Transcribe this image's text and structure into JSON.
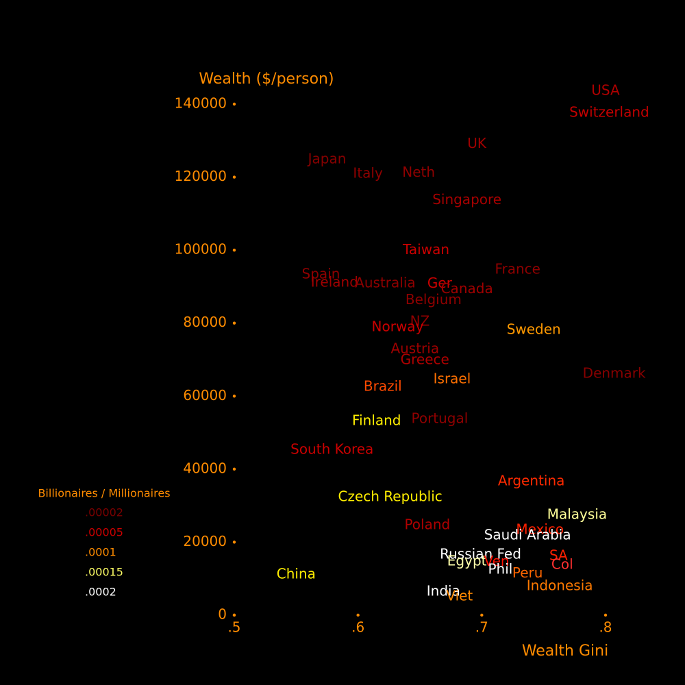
{
  "chart_data": {
    "type": "scatter",
    "y_label": "Wealth ($/person)",
    "x_label": "Wealth Gini",
    "axis_color": "#ff8c00",
    "xlim": [
      0.5,
      0.8
    ],
    "ylim": [
      0,
      140000
    ],
    "xticks": [
      {
        "value": 0.5,
        "label": ".5"
      },
      {
        "value": 0.6,
        "label": ".6"
      },
      {
        "value": 0.7,
        "label": ".7"
      },
      {
        "value": 0.8,
        "label": ".8"
      }
    ],
    "yticks": [
      0,
      20000,
      40000,
      60000,
      80000,
      100000,
      120000,
      140000
    ],
    "legend_title": "Billionaires / Millionaires",
    "legend": [
      {
        "label": ".00002",
        "color": "#7a0000"
      },
      {
        "label": ".00005",
        "color": "#cc0000"
      },
      {
        "label": ".0001",
        "color": "#ff8c00"
      },
      {
        "label": ".00015",
        "color": "#ffff66"
      },
      {
        "label": ".0002",
        "color": "#ffffff"
      }
    ],
    "points": [
      {
        "name": "USA",
        "x": 0.8,
        "y": 143600,
        "color": "#b00000"
      },
      {
        "name": "Switzerland",
        "x": 0.803,
        "y": 137600,
        "color": "#c40000"
      },
      {
        "name": "UK",
        "x": 0.696,
        "y": 129000,
        "color": "#a00000"
      },
      {
        "name": "Japan",
        "x": 0.575,
        "y": 124800,
        "color": "#880000"
      },
      {
        "name": "Italy",
        "x": 0.608,
        "y": 120900,
        "color": "#900000"
      },
      {
        "name": "Neth",
        "x": 0.649,
        "y": 121100,
        "color": "#900000"
      },
      {
        "name": "Singapore",
        "x": 0.688,
        "y": 113600,
        "color": "#a80000"
      },
      {
        "name": "Taiwan",
        "x": 0.655,
        "y": 99900,
        "color": "#cc0000"
      },
      {
        "name": "France",
        "x": 0.729,
        "y": 94600,
        "color": "#900000"
      },
      {
        "name": "Spain",
        "x": 0.57,
        "y": 93300,
        "color": "#900000"
      },
      {
        "name": "Ireland",
        "x": 0.581,
        "y": 91000,
        "color": "#a00000"
      },
      {
        "name": "Australia",
        "x": 0.622,
        "y": 90800,
        "color": "#900000"
      },
      {
        "name": "Ger",
        "x": 0.666,
        "y": 90700,
        "color": "#cc0000"
      },
      {
        "name": "Canada",
        "x": 0.688,
        "y": 89200,
        "color": "#a00000"
      },
      {
        "name": "Belgium",
        "x": 0.661,
        "y": 86200,
        "color": "#900000"
      },
      {
        "name": "NZ",
        "x": 0.65,
        "y": 80300,
        "color": "#900000"
      },
      {
        "name": "Norway",
        "x": 0.632,
        "y": 78800,
        "color": "#cc0000"
      },
      {
        "name": "Sweden",
        "x": 0.742,
        "y": 78100,
        "color": "#ff9900"
      },
      {
        "name": "Austria",
        "x": 0.646,
        "y": 72800,
        "color": "#a00000"
      },
      {
        "name": "Greece",
        "x": 0.654,
        "y": 69800,
        "color": "#b00000"
      },
      {
        "name": "Denmark",
        "x": 0.807,
        "y": 66100,
        "color": "#880000"
      },
      {
        "name": "Israel",
        "x": 0.676,
        "y": 64600,
        "color": "#ff7000"
      },
      {
        "name": "Brazil",
        "x": 0.62,
        "y": 62500,
        "color": "#ff4a00"
      },
      {
        "name": "Finland",
        "x": 0.615,
        "y": 53100,
        "color": "#ffee00"
      },
      {
        "name": "Portugal",
        "x": 0.666,
        "y": 53700,
        "color": "#900000"
      },
      {
        "name": "South Korea",
        "x": 0.579,
        "y": 45200,
        "color": "#cc0000"
      },
      {
        "name": "Argentina",
        "x": 0.74,
        "y": 36600,
        "color": "#ff2a00"
      },
      {
        "name": "Czech Republic",
        "x": 0.626,
        "y": 32300,
        "color": "#ffee00"
      },
      {
        "name": "Malaysia",
        "x": 0.777,
        "y": 27400,
        "color": "#ffff99"
      },
      {
        "name": "Poland",
        "x": 0.656,
        "y": 24600,
        "color": "#b00000"
      },
      {
        "name": "Mexico",
        "x": 0.747,
        "y": 23300,
        "color": "#ff2000"
      },
      {
        "name": "Saudi Arabia",
        "x": 0.737,
        "y": 21800,
        "color": "#ffffff"
      },
      {
        "name": "Russian Fed",
        "x": 0.699,
        "y": 16500,
        "color": "#ffffff"
      },
      {
        "name": "SA",
        "x": 0.762,
        "y": 16100,
        "color": "#ff2000"
      },
      {
        "name": "Egypt",
        "x": 0.688,
        "y": 14600,
        "color": "#ffffaa"
      },
      {
        "name": "Ven",
        "x": 0.712,
        "y": 14500,
        "color": "#ff1000"
      },
      {
        "name": "Col",
        "x": 0.765,
        "y": 13700,
        "color": "#ff3030"
      },
      {
        "name": "Phil",
        "x": 0.715,
        "y": 12400,
        "color": "#ffffff"
      },
      {
        "name": "Peru",
        "x": 0.737,
        "y": 11400,
        "color": "#ff6600"
      },
      {
        "name": "China",
        "x": 0.55,
        "y": 11100,
        "color": "#ffee00"
      },
      {
        "name": "Indonesia",
        "x": 0.763,
        "y": 7900,
        "color": "#ff7a00"
      },
      {
        "name": "India",
        "x": 0.669,
        "y": 6400,
        "color": "#ffffff"
      },
      {
        "name": "Viet",
        "x": 0.682,
        "y": 5100,
        "color": "#ff8800"
      }
    ]
  }
}
